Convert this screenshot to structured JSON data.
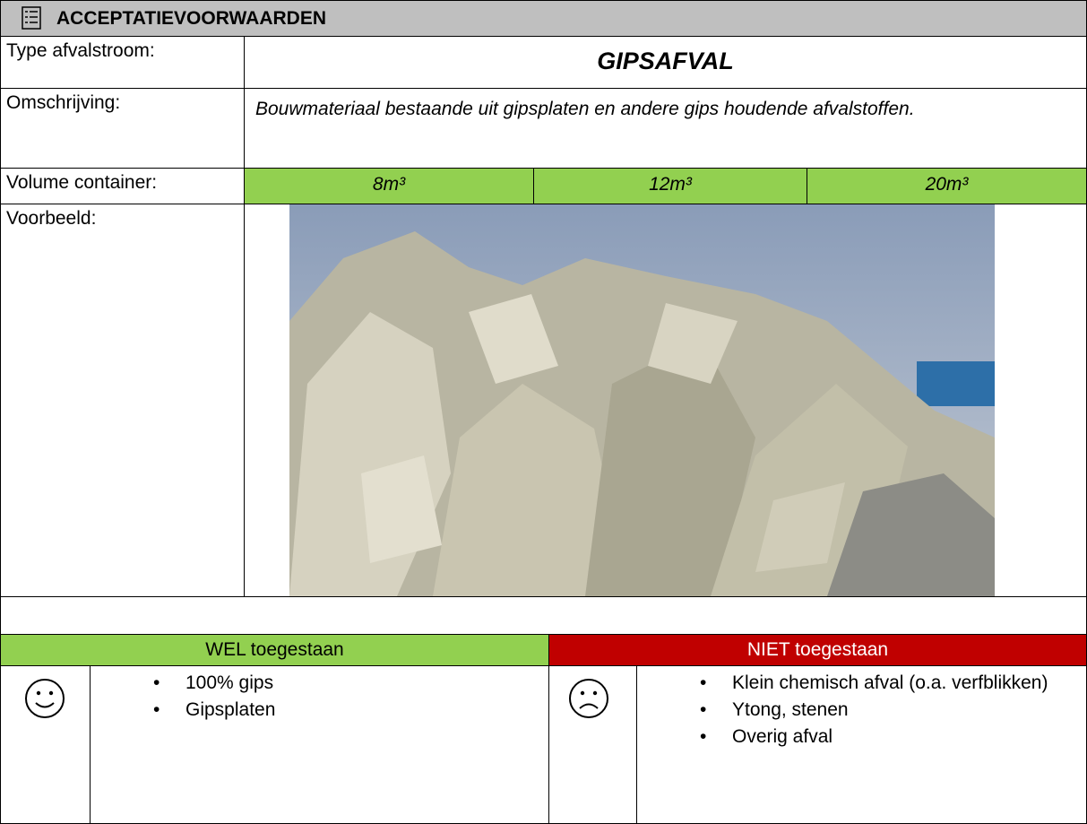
{
  "header": {
    "title": "ACCEPTATIEVOORWAARDEN"
  },
  "rows": [
    {
      "label": "Type afvalstroom:",
      "value": "GIPSAFVAL"
    },
    {
      "label": "Omschrijving:",
      "value": "Bouwmateriaal bestaande uit gipsplaten en andere gips houdende afvalstoffen."
    }
  ],
  "volume": {
    "label": "Volume container:",
    "options": [
      "8m³",
      "12m³",
      "20m³"
    ]
  },
  "example": {
    "label": "Voorbeeld:"
  },
  "allowed": {
    "header": "WEL toegestaan",
    "items": [
      "100% gips",
      "Gipsplaten"
    ]
  },
  "not_allowed": {
    "header": "NIET toegestaan",
    "items": [
      "Klein chemisch afval (o.a. verfblikken)",
      "Ytong, stenen",
      "Overig afval"
    ]
  }
}
